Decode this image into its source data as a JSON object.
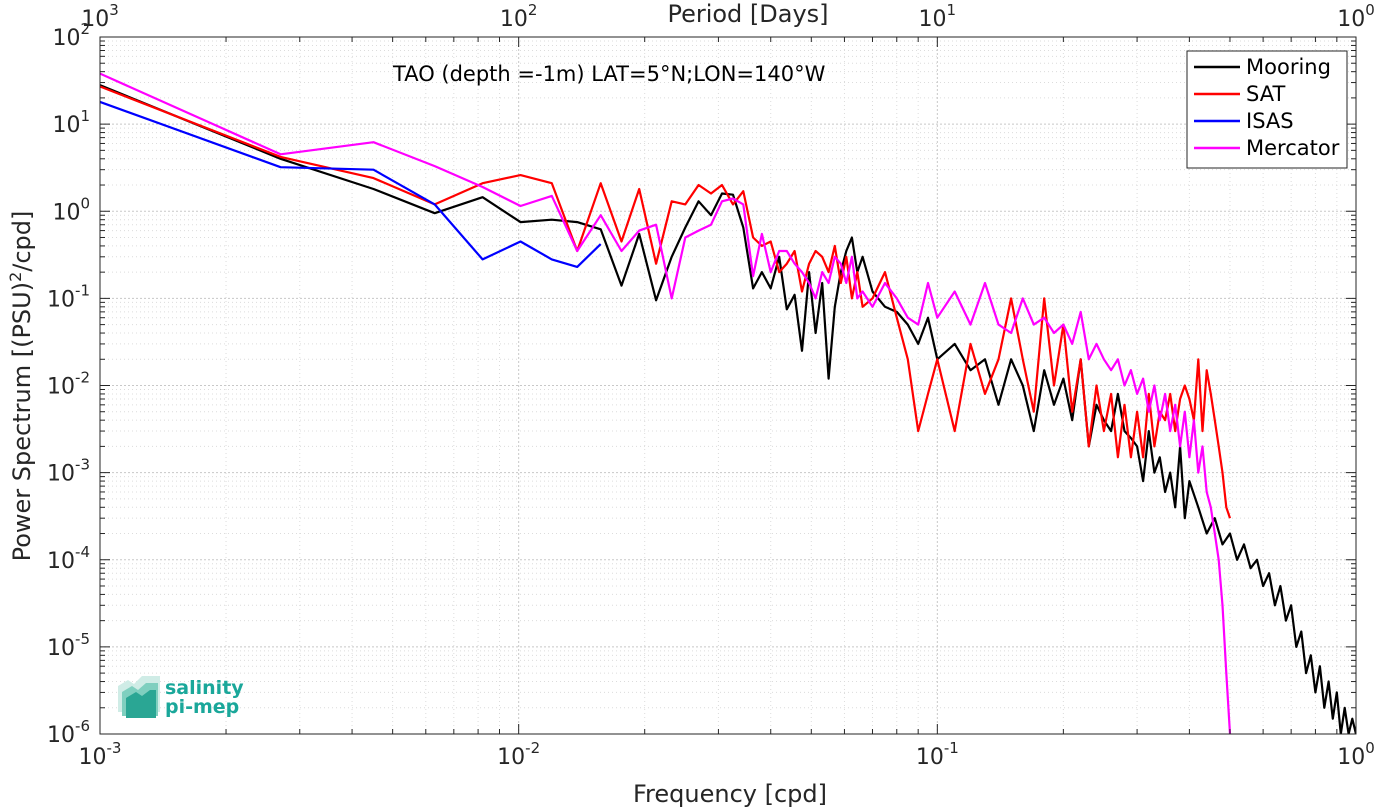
{
  "chart_data": {
    "type": "line",
    "title": "TAO (depth =-1m) LAT=5°N;LON=140°W",
    "xlabel": "Frequency [cpd]",
    "ylabel": "Power Spectrum [(PSU)²/cpd]",
    "top_xlabel": "Period [Days]",
    "xscale": "log",
    "yscale": "log",
    "xlim": [
      0.001,
      1
    ],
    "ylim": [
      1e-06,
      100
    ],
    "x_ticks": [
      0.001,
      0.01,
      0.1,
      1
    ],
    "x_tick_labels": [
      {
        "base": "10",
        "exp": "-3"
      },
      {
        "base": "10",
        "exp": "-2"
      },
      {
        "base": "10",
        "exp": "-1"
      },
      {
        "base": "10",
        "exp": "0"
      }
    ],
    "top_ticks_days": [
      1000,
      100,
      10,
      1
    ],
    "top_tick_labels": [
      {
        "base": "10",
        "exp": "3"
      },
      {
        "base": "10",
        "exp": "2"
      },
      {
        "base": "10",
        "exp": "1"
      },
      {
        "base": "10",
        "exp": "0"
      }
    ],
    "y_ticks": [
      1e-06,
      1e-05,
      0.0001,
      0.001,
      0.01,
      0.1,
      1,
      10,
      100
    ],
    "y_tick_labels": [
      {
        "base": "10",
        "exp": "-6"
      },
      {
        "base": "10",
        "exp": "-5"
      },
      {
        "base": "10",
        "exp": "-4"
      },
      {
        "base": "10",
        "exp": "-3"
      },
      {
        "base": "10",
        "exp": "-2"
      },
      {
        "base": "10",
        "exp": "-1"
      },
      {
        "base": "10",
        "exp": "0"
      },
      {
        "base": "10",
        "exp": "1"
      },
      {
        "base": "10",
        "exp": "2"
      }
    ],
    "grid": true,
    "legend_position": "top-right",
    "series": [
      {
        "name": "Mooring",
        "color": "#000000",
        "x": [
          0.001,
          0.0027,
          0.0045,
          0.0063,
          0.0082,
          0.0101,
          0.012,
          0.0138,
          0.0157,
          0.0176,
          0.0194,
          0.0213,
          0.0232,
          0.025,
          0.0269,
          0.0288,
          0.0306,
          0.0325,
          0.0344,
          0.0363,
          0.0381,
          0.04,
          0.0419,
          0.0437,
          0.0456,
          0.0475,
          0.0494,
          0.0512,
          0.0531,
          0.055,
          0.0569,
          0.0588,
          0.0606,
          0.0625,
          0.0644,
          0.0663,
          0.07,
          0.075,
          0.08,
          0.085,
          0.09,
          0.095,
          0.1,
          0.11,
          0.12,
          0.13,
          0.14,
          0.15,
          0.16,
          0.17,
          0.18,
          0.19,
          0.2,
          0.21,
          0.22,
          0.23,
          0.24,
          0.25,
          0.26,
          0.27,
          0.28,
          0.29,
          0.3,
          0.31,
          0.32,
          0.33,
          0.34,
          0.35,
          0.36,
          0.37,
          0.38,
          0.39,
          0.4,
          0.42,
          0.44,
          0.46,
          0.48,
          0.5,
          0.52,
          0.54,
          0.56,
          0.58,
          0.6,
          0.62,
          0.64,
          0.66,
          0.68,
          0.7,
          0.72,
          0.74,
          0.76,
          0.78,
          0.8,
          0.82,
          0.84,
          0.86,
          0.88,
          0.9,
          0.92,
          0.94,
          0.96,
          0.98,
          1.0
        ],
        "y": [
          28,
          4,
          1.8,
          0.95,
          1.45,
          0.75,
          0.8,
          0.75,
          0.62,
          0.14,
          0.55,
          0.095,
          0.3,
          0.65,
          1.3,
          0.9,
          1.6,
          1.55,
          0.65,
          0.13,
          0.2,
          0.13,
          0.3,
          0.075,
          0.11,
          0.025,
          0.2,
          0.04,
          0.15,
          0.012,
          0.08,
          0.2,
          0.35,
          0.5,
          0.2,
          0.3,
          0.12,
          0.08,
          0.07,
          0.05,
          0.03,
          0.06,
          0.02,
          0.03,
          0.015,
          0.02,
          0.006,
          0.02,
          0.01,
          0.003,
          0.015,
          0.006,
          0.012,
          0.004,
          0.02,
          0.002,
          0.006,
          0.004,
          0.003,
          0.008,
          0.003,
          0.0025,
          0.002,
          0.0008,
          0.003,
          0.001,
          0.0015,
          0.0006,
          0.001,
          0.0004,
          0.002,
          0.0003,
          0.0008,
          0.0004,
          0.0002,
          0.0003,
          0.00015,
          0.0002,
          0.0001,
          0.00015,
          8e-05,
          0.0001,
          5e-05,
          7e-05,
          3e-05,
          5e-05,
          2e-05,
          3e-05,
          1e-05,
          1.5e-05,
          5e-06,
          8e-06,
          3e-06,
          6e-06,
          2e-06,
          4e-06,
          1.5e-06,
          3e-06,
          1e-06,
          2e-06,
          1e-06,
          1.5e-06,
          1e-06
        ]
      },
      {
        "name": "SAT",
        "color": "#ff0000",
        "x": [
          0.001,
          0.0027,
          0.0045,
          0.0063,
          0.0082,
          0.0101,
          0.012,
          0.0138,
          0.0157,
          0.0176,
          0.0194,
          0.0213,
          0.0232,
          0.025,
          0.0269,
          0.0288,
          0.0306,
          0.0325,
          0.0344,
          0.0363,
          0.0381,
          0.04,
          0.0419,
          0.0437,
          0.0456,
          0.0475,
          0.0494,
          0.0512,
          0.0531,
          0.055,
          0.0569,
          0.0588,
          0.0606,
          0.0625,
          0.0644,
          0.0663,
          0.07,
          0.075,
          0.08,
          0.085,
          0.09,
          0.095,
          0.1,
          0.11,
          0.12,
          0.13,
          0.14,
          0.15,
          0.16,
          0.17,
          0.18,
          0.19,
          0.2,
          0.21,
          0.22,
          0.23,
          0.24,
          0.25,
          0.26,
          0.27,
          0.28,
          0.29,
          0.3,
          0.31,
          0.32,
          0.33,
          0.34,
          0.35,
          0.36,
          0.37,
          0.38,
          0.39,
          0.4,
          0.41,
          0.42,
          0.43,
          0.44,
          0.45,
          0.46,
          0.47,
          0.48,
          0.49,
          0.5
        ],
        "y": [
          27,
          4.2,
          2.4,
          1.2,
          2.1,
          2.6,
          2.1,
          0.35,
          2.1,
          0.45,
          1.8,
          0.25,
          1.3,
          1.2,
          2,
          1.6,
          2,
          1.2,
          1.7,
          0.5,
          0.4,
          0.45,
          0.2,
          0.25,
          0.35,
          0.12,
          0.25,
          0.35,
          0.3,
          0.2,
          0.4,
          0.15,
          0.3,
          0.1,
          0.2,
          0.08,
          0.1,
          0.2,
          0.06,
          0.02,
          0.003,
          0.008,
          0.02,
          0.003,
          0.03,
          0.008,
          0.02,
          0.1,
          0.02,
          0.005,
          0.1,
          0.01,
          0.05,
          0.005,
          0.02,
          0.002,
          0.01,
          0.003,
          0.008,
          0.0015,
          0.006,
          0.0015,
          0.005,
          0.0015,
          0.008,
          0.002,
          0.005,
          0.004,
          0.008,
          0.003,
          0.007,
          0.01,
          0.007,
          0.004,
          0.02,
          0.003,
          0.015,
          0.008,
          0.004,
          0.002,
          0.001,
          0.0004,
          0.0003
        ]
      },
      {
        "name": "ISAS",
        "color": "#0000ff",
        "x": [
          0.001,
          0.0027,
          0.0045,
          0.0063,
          0.0082,
          0.0101,
          0.012,
          0.0138,
          0.0157
        ],
        "y": [
          18,
          3.2,
          3,
          1.2,
          0.28,
          0.45,
          0.28,
          0.23,
          0.42
        ]
      },
      {
        "name": "Mercator",
        "color": "#ff00ff",
        "x": [
          0.001,
          0.0027,
          0.0045,
          0.0063,
          0.0082,
          0.0101,
          0.012,
          0.0138,
          0.0157,
          0.0176,
          0.0194,
          0.0213,
          0.0232,
          0.025,
          0.0269,
          0.0288,
          0.0306,
          0.0325,
          0.0344,
          0.0363,
          0.0381,
          0.04,
          0.0419,
          0.0437,
          0.0456,
          0.0475,
          0.0494,
          0.0512,
          0.0531,
          0.055,
          0.0569,
          0.0588,
          0.0606,
          0.0625,
          0.0644,
          0.0663,
          0.07,
          0.075,
          0.08,
          0.085,
          0.09,
          0.095,
          0.1,
          0.11,
          0.12,
          0.13,
          0.14,
          0.15,
          0.16,
          0.17,
          0.18,
          0.19,
          0.2,
          0.21,
          0.22,
          0.23,
          0.24,
          0.25,
          0.26,
          0.27,
          0.28,
          0.29,
          0.3,
          0.31,
          0.32,
          0.33,
          0.34,
          0.35,
          0.36,
          0.37,
          0.38,
          0.39,
          0.4,
          0.41,
          0.42,
          0.43,
          0.44,
          0.45,
          0.46,
          0.47,
          0.48,
          0.49,
          0.5
        ],
        "y": [
          38,
          4.5,
          6.2,
          3.3,
          1.9,
          1.15,
          1.5,
          0.35,
          0.9,
          0.35,
          0.6,
          0.7,
          0.1,
          0.5,
          0.6,
          0.7,
          1.3,
          1.4,
          1.2,
          0.18,
          0.55,
          0.2,
          0.35,
          0.35,
          0.25,
          0.2,
          0.15,
          0.1,
          0.2,
          0.15,
          0.3,
          0.25,
          0.15,
          0.3,
          0.1,
          0.12,
          0.08,
          0.15,
          0.1,
          0.06,
          0.05,
          0.15,
          0.06,
          0.12,
          0.05,
          0.15,
          0.05,
          0.04,
          0.1,
          0.05,
          0.06,
          0.04,
          0.05,
          0.03,
          0.07,
          0.02,
          0.03,
          0.02,
          0.015,
          0.02,
          0.01,
          0.015,
          0.008,
          0.012,
          0.005,
          0.01,
          0.004,
          0.008,
          0.003,
          0.006,
          0.002,
          0.005,
          0.0015,
          0.004,
          0.001,
          0.002,
          0.0006,
          0.0004,
          0.0002,
          0.0001,
          3e-05,
          5e-06,
          1e-06
        ]
      }
    ]
  },
  "logo": {
    "line1": "salinity",
    "line2": "pi-mep"
  }
}
